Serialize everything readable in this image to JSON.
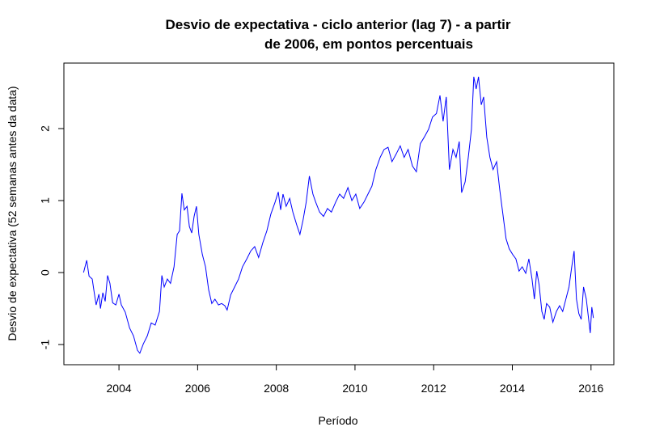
{
  "chart_data": {
    "type": "line",
    "title": [
      "Desvio de expectativa - ciclo anterior (lag 7) - a partir",
      "de 2006, em pontos percentuais"
    ],
    "xlabel": "Período",
    "ylabel": "Desvio de expectativa (52 semanas antes da data)",
    "xlim": [
      2002.6,
      2016.58
    ],
    "ylim": [
      -1.28,
      2.91
    ],
    "xticks": [
      2004,
      2006,
      2008,
      2010,
      2012,
      2014,
      2016
    ],
    "yticks": [
      -1,
      0,
      1,
      2
    ],
    "grid": false,
    "x": [
      2003.1,
      2003.18,
      2003.24,
      2003.32,
      2003.38,
      2003.42,
      2003.49,
      2003.53,
      2003.59,
      2003.65,
      2003.71,
      2003.77,
      2003.84,
      2003.92,
      2004.0,
      2004.06,
      2004.16,
      2004.27,
      2004.37,
      2004.47,
      2004.53,
      2004.62,
      2004.72,
      2004.82,
      2004.92,
      2005.03,
      2005.09,
      2005.15,
      2005.23,
      2005.31,
      2005.4,
      2005.48,
      2005.54,
      2005.6,
      2005.66,
      2005.73,
      2005.79,
      2005.85,
      2005.91,
      2005.97,
      2006.03,
      2006.12,
      2006.2,
      2006.28,
      2006.36,
      2006.44,
      2006.53,
      2006.61,
      2006.69,
      2006.75,
      2006.84,
      2006.94,
      2007.04,
      2007.14,
      2007.25,
      2007.35,
      2007.45,
      2007.55,
      2007.66,
      2007.76,
      2007.86,
      2007.97,
      2008.05,
      2008.11,
      2008.17,
      2008.25,
      2008.34,
      2008.42,
      2008.52,
      2008.6,
      2008.68,
      2008.76,
      2008.84,
      2008.93,
      2009.0,
      2009.1,
      2009.2,
      2009.3,
      2009.4,
      2009.51,
      2009.61,
      2009.71,
      2009.82,
      2009.92,
      2010.02,
      2010.12,
      2010.23,
      2010.33,
      2010.43,
      2010.53,
      2010.64,
      2010.74,
      2010.84,
      2010.94,
      2011.05,
      2011.15,
      2011.25,
      2011.35,
      2011.46,
      2011.56,
      2011.66,
      2011.76,
      2011.87,
      2011.97,
      2012.07,
      2012.16,
      2012.24,
      2012.32,
      2012.4,
      2012.49,
      2012.57,
      2012.65,
      2012.71,
      2012.8,
      2012.88,
      2012.96,
      2013.02,
      2013.08,
      2013.14,
      2013.21,
      2013.27,
      2013.35,
      2013.43,
      2013.51,
      2013.6,
      2013.68,
      2013.76,
      2013.84,
      2013.92,
      2014.01,
      2014.09,
      2014.17,
      2014.25,
      2014.34,
      2014.42,
      2014.5,
      2014.56,
      2014.62,
      2014.68,
      2014.75,
      2014.81,
      2014.87,
      2014.95,
      2015.03,
      2015.12,
      2015.2,
      2015.28,
      2015.36,
      2015.44,
      2015.51,
      2015.57,
      2015.63,
      2015.69,
      2015.75,
      2015.81,
      2015.88,
      2015.94,
      2015.98,
      2016.02,
      2016.06
    ],
    "series": [
      {
        "name": "Desvio",
        "color": "#0000ff",
        "values": [
          0.0,
          0.17,
          -0.05,
          -0.09,
          -0.31,
          -0.45,
          -0.3,
          -0.5,
          -0.28,
          -0.4,
          -0.04,
          -0.15,
          -0.42,
          -0.45,
          -0.3,
          -0.45,
          -0.55,
          -0.77,
          -0.88,
          -1.08,
          -1.12,
          -0.99,
          -0.88,
          -0.7,
          -0.73,
          -0.54,
          -0.04,
          -0.2,
          -0.09,
          -0.15,
          0.08,
          0.53,
          0.58,
          1.1,
          0.87,
          0.92,
          0.64,
          0.55,
          0.78,
          0.92,
          0.53,
          0.25,
          0.08,
          -0.24,
          -0.43,
          -0.37,
          -0.45,
          -0.43,
          -0.46,
          -0.52,
          -0.31,
          -0.2,
          -0.09,
          0.08,
          0.19,
          0.3,
          0.36,
          0.21,
          0.42,
          0.58,
          0.81,
          0.98,
          1.12,
          0.87,
          1.09,
          0.92,
          1.03,
          0.84,
          0.66,
          0.53,
          0.73,
          0.98,
          1.34,
          1.09,
          0.98,
          0.84,
          0.78,
          0.89,
          0.84,
          0.98,
          1.09,
          1.03,
          1.18,
          1.0,
          1.09,
          0.89,
          0.98,
          1.09,
          1.2,
          1.43,
          1.6,
          1.71,
          1.74,
          1.54,
          1.65,
          1.76,
          1.6,
          1.71,
          1.48,
          1.4,
          1.79,
          1.88,
          1.99,
          2.16,
          2.21,
          2.46,
          2.1,
          2.44,
          1.43,
          1.71,
          1.6,
          1.82,
          1.11,
          1.26,
          1.6,
          1.99,
          2.72,
          2.55,
          2.72,
          2.33,
          2.44,
          1.88,
          1.6,
          1.43,
          1.54,
          1.15,
          0.81,
          0.47,
          0.33,
          0.25,
          0.19,
          0.02,
          0.08,
          -0.01,
          0.19,
          -0.09,
          -0.37,
          0.02,
          -0.17,
          -0.54,
          -0.65,
          -0.43,
          -0.48,
          -0.69,
          -0.54,
          -0.46,
          -0.54,
          -0.37,
          -0.2,
          0.08,
          0.3,
          -0.37,
          -0.57,
          -0.65,
          -0.2,
          -0.37,
          -0.65,
          -0.84,
          -0.48,
          -0.63
        ]
      }
    ]
  }
}
